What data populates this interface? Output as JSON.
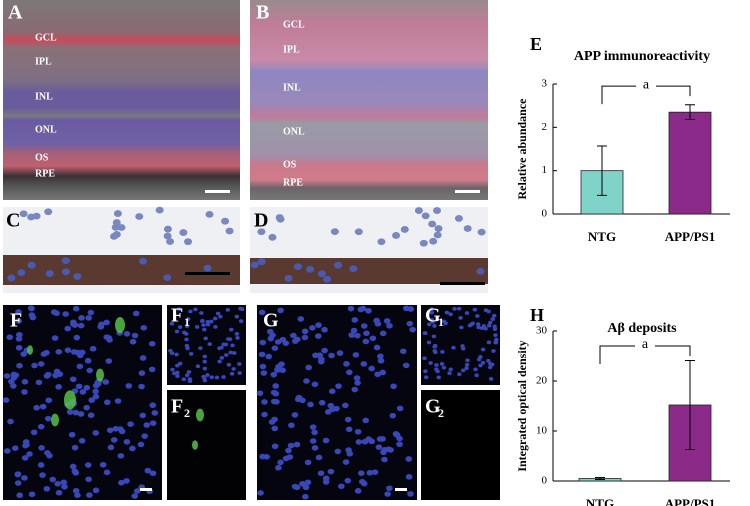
{
  "panels": {
    "A": {
      "label": "A",
      "layers": [
        "GCL",
        "IPL",
        "INL",
        "ONL",
        "OS",
        "RPE"
      ]
    },
    "B": {
      "label": "B",
      "layers": [
        "GCL",
        "IPL",
        "INL",
        "ONL",
        "OS",
        "RPE"
      ]
    },
    "C": {
      "label": "C"
    },
    "D": {
      "label": "D"
    },
    "F": {
      "label": "F"
    },
    "F1": {
      "label": "F",
      "sub": "1"
    },
    "F2": {
      "label": "F",
      "sub": "2"
    },
    "G": {
      "label": "G"
    },
    "G1": {
      "label": "G",
      "sub": "1"
    },
    "G2": {
      "label": "G",
      "sub": "2"
    }
  },
  "chart_data": [
    {
      "type": "bar",
      "panel_label": "E",
      "title": "APP immunoreactivity",
      "y_label": "Relative abundance",
      "categories": [
        "NTG",
        "APP/PS1"
      ],
      "values": [
        1.0,
        2.35
      ],
      "errors": [
        0.57,
        0.17
      ],
      "colors": [
        "#7fd3c9",
        "#8b2a88"
      ],
      "ylim": [
        0,
        3
      ],
      "yticks": [
        0,
        1,
        2,
        3
      ],
      "annotation": "a"
    },
    {
      "type": "bar",
      "panel_label": "H",
      "title": "Aβ deposits",
      "y_label": "Integrated optical density",
      "categories": [
        "NTG",
        "APP/PS1"
      ],
      "values": [
        0.5,
        15.2
      ],
      "errors": [
        0.2,
        8.9
      ],
      "colors": [
        "#7fd3c9",
        "#8b2a88"
      ],
      "ylim": [
        0,
        30
      ],
      "yticks": [
        0,
        10,
        20,
        30
      ],
      "annotation": "a"
    }
  ]
}
